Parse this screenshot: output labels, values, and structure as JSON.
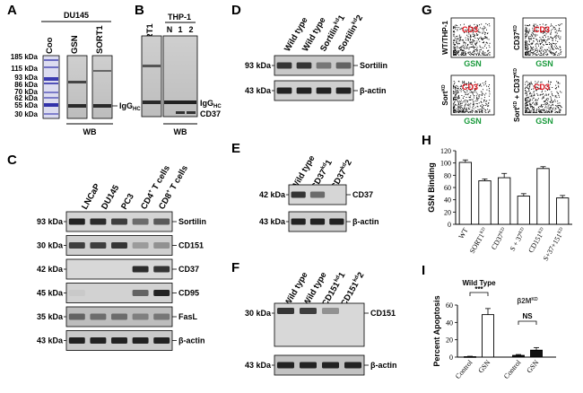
{
  "panels": {
    "A": {
      "label": "A",
      "cell_line": "DU145",
      "lanes": [
        "Coo",
        "GSN",
        "SORT1"
      ],
      "markers": [
        "185 kDa",
        "115 kDa",
        "93 kDa",
        "86 kDa",
        "70 kDa",
        "62 kDa",
        "55 kDa",
        "30 kDa"
      ],
      "band_label": "IgG",
      "band_label_sub": "HC",
      "footer": "WB"
    },
    "B": {
      "label": "B",
      "lane_left": "SORT1",
      "group": "THP-1",
      "lanes": [
        "N",
        "1",
        "2"
      ],
      "band_labels": [
        {
          "text": "IgG",
          "sub": "HC"
        },
        {
          "text": "CD37",
          "sub": ""
        }
      ],
      "footer": "WB"
    },
    "C": {
      "label": "C",
      "lanes": [
        {
          "text": "LNCaP",
          "sup": ""
        },
        {
          "text": "DU145",
          "sup": ""
        },
        {
          "text": "PC3",
          "sup": ""
        },
        {
          "text": "CD4",
          "sup": "+",
          "rest": " T cells"
        },
        {
          "text": "CD8",
          "sup": "+",
          "rest": " T cells"
        }
      ],
      "rows": [
        {
          "kda": "93 kDa",
          "protein": "Sortilin"
        },
        {
          "kda": "30 kDa",
          "protein": "CD151"
        },
        {
          "kda": "42 kDa",
          "protein": "CD37"
        },
        {
          "kda": "45 kDa",
          "protein": "CD95"
        },
        {
          "kda": "35 kDa",
          "protein": "FasL"
        },
        {
          "kda": "43 kDa",
          "protein": "β-actin"
        }
      ]
    },
    "D": {
      "label": "D",
      "lanes": [
        {
          "text": "Wild type",
          "sup": ""
        },
        {
          "text": "Wild type",
          "sup": ""
        },
        {
          "text": "Sortilin",
          "sup": "kd",
          "rest": "1"
        },
        {
          "text": "Sortilin",
          "sup": "kd",
          "rest": "2"
        }
      ],
      "rows": [
        {
          "kda": "93 kDa",
          "protein": "Sortilin"
        },
        {
          "kda": "43 kDa",
          "protein": "β-actin"
        }
      ]
    },
    "E": {
      "label": "E",
      "lanes": [
        {
          "text": "Wild type",
          "sup": ""
        },
        {
          "text": "CD37",
          "sup": "kd",
          "rest": "1"
        },
        {
          "text": "CD37",
          "sup": "kd",
          "rest": "2"
        }
      ],
      "rows": [
        {
          "kda": "42 kDa",
          "protein": "CD37"
        },
        {
          "kda": "43 kDa",
          "protein": "β-actin"
        }
      ]
    },
    "F": {
      "label": "F",
      "lanes": [
        {
          "text": "Wild type",
          "sup": ""
        },
        {
          "text": "Wild type",
          "sup": ""
        },
        {
          "text": "CD151",
          "sup": "kd",
          "rest": "1"
        },
        {
          "text": "CD151",
          "sup": "kd",
          "rest": "2"
        }
      ],
      "rows": [
        {
          "kda": "30 kDa",
          "protein": "CD151"
        },
        {
          "kda": "43 kDa",
          "protein": "β-actin"
        }
      ]
    },
    "G": {
      "label": "G",
      "x_axis": "GSN",
      "y_axis": "CD3",
      "plots": [
        {
          "side_label": "WT/THP-1",
          "side_sup": ""
        },
        {
          "side_label": "CD37",
          "side_sup": "KD"
        },
        {
          "side_label": "Sort",
          "side_sup": "KD"
        },
        {
          "side_label": "Sort",
          "side_sup": "KD",
          "side_rest": " + CD37",
          "side_sup2": "KD"
        }
      ],
      "colors": {
        "y_axis": "#e0121c",
        "x_axis": "#1a9a3c"
      }
    },
    "H": {
      "label": "H"
    },
    "I": {
      "label": "I",
      "group1": "Wild Type",
      "group2": "β2M",
      "group2_sup": "KD",
      "sig1": "***",
      "sig2": "NS"
    }
  },
  "chart_data": [
    {
      "type": "bar",
      "panel": "H",
      "ylabel": "GSN Binding",
      "categories": [
        {
          "text": "WT",
          "sup": ""
        },
        {
          "text": "SORT1",
          "sup": "KD"
        },
        {
          "text": "CD37",
          "sup": "KD"
        },
        {
          "text": "S + 37",
          "sup": "KD"
        },
        {
          "text": "CD151",
          "sup": "KD"
        },
        {
          "text": "S+37+151",
          "sup": "KD"
        }
      ],
      "values": [
        101,
        71,
        76,
        46,
        91,
        43
      ],
      "errors": [
        4,
        3,
        7,
        4,
        3,
        4
      ],
      "yticks": [
        0,
        20,
        40,
        60,
        80,
        100,
        120
      ],
      "ylim": [
        0,
        120
      ]
    },
    {
      "type": "bar",
      "panel": "I",
      "ylabel": "Percent Apoptosis",
      "categories": [
        "Control",
        "GSN",
        "Control",
        "GSN"
      ],
      "values": [
        0.5,
        49,
        2,
        8
      ],
      "errors": [
        0.5,
        7,
        1,
        3
      ],
      "fills": [
        "#ffffff",
        "#ffffff",
        "#111111",
        "#111111"
      ],
      "yticks": [
        0,
        20,
        40,
        60
      ],
      "ylim": [
        0,
        60
      ]
    }
  ]
}
